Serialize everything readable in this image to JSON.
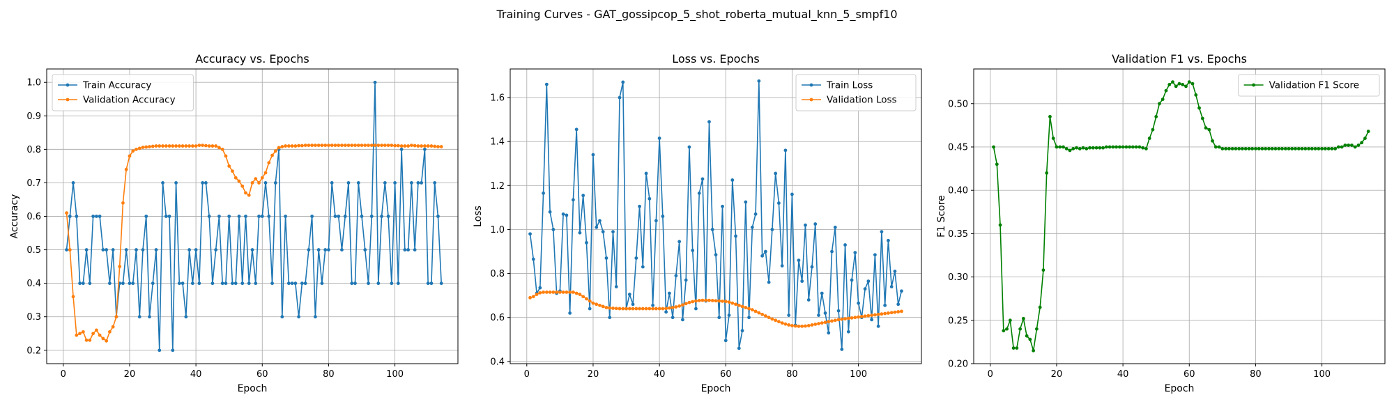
{
  "figure": {
    "suptitle": "Training Curves - GAT_gossipcop_5_shot_roberta_mutual_knn_5_smpf10"
  },
  "chart_data": [
    {
      "type": "line",
      "title": "Accuracy vs. Epochs",
      "xlabel": "Epoch",
      "ylabel": "Accuracy",
      "xlim": [
        -5,
        119
      ],
      "ylim": [
        0.16,
        1.04
      ],
      "xticks": [
        0,
        20,
        40,
        60,
        80,
        100
      ],
      "yticks": [
        0.2,
        0.3,
        0.4,
        0.5,
        0.6,
        0.7,
        0.8,
        0.9,
        1.0
      ],
      "yfmt": 1,
      "grid": true,
      "legend_position": "upper-left",
      "series": [
        {
          "name": "Train Accuracy",
          "color": "#1f77b4",
          "x_start": 1,
          "values": [
            0.5,
            0.6,
            0.7,
            0.6,
            0.4,
            0.4,
            0.5,
            0.4,
            0.6,
            0.6,
            0.6,
            0.5,
            0.5,
            0.4,
            0.5,
            0.3,
            0.4,
            0.4,
            0.5,
            0.4,
            0.4,
            0.5,
            0.3,
            0.5,
            0.6,
            0.3,
            0.4,
            0.5,
            0.2,
            0.7,
            0.6,
            0.6,
            0.2,
            0.7,
            0.4,
            0.4,
            0.3,
            0.5,
            0.4,
            0.5,
            0.4,
            0.7,
            0.7,
            0.6,
            0.4,
            0.5,
            0.6,
            0.4,
            0.4,
            0.6,
            0.4,
            0.4,
            0.6,
            0.4,
            0.6,
            0.4,
            0.5,
            0.4,
            0.6,
            0.6,
            0.7,
            0.6,
            0.4,
            0.7,
            0.8,
            0.3,
            0.6,
            0.4,
            0.4,
            0.4,
            0.3,
            0.4,
            0.4,
            0.5,
            0.6,
            0.3,
            0.5,
            0.4,
            0.5,
            0.5,
            0.7,
            0.6,
            0.6,
            0.5,
            0.6,
            0.7,
            0.4,
            0.4,
            0.7,
            0.6,
            0.5,
            0.4,
            0.6,
            1.0,
            0.4,
            0.6,
            0.7,
            0.6,
            0.4,
            0.7,
            0.4,
            0.8,
            0.5,
            0.5,
            0.7,
            0.5,
            0.7,
            0.7,
            0.8,
            0.4,
            0.4,
            0.7,
            0.6,
            0.4
          ]
        },
        {
          "name": "Validation Accuracy",
          "color": "#ff7f0e",
          "x_start": 1,
          "values": [
            0.61,
            0.5,
            0.36,
            0.245,
            0.25,
            0.255,
            0.23,
            0.23,
            0.25,
            0.26,
            0.245,
            0.235,
            0.228,
            0.255,
            0.27,
            0.3,
            0.45,
            0.64,
            0.74,
            0.78,
            0.795,
            0.8,
            0.803,
            0.806,
            0.807,
            0.808,
            0.809,
            0.81,
            0.81,
            0.81,
            0.81,
            0.81,
            0.81,
            0.81,
            0.81,
            0.81,
            0.81,
            0.81,
            0.81,
            0.81,
            0.812,
            0.812,
            0.811,
            0.81,
            0.81,
            0.81,
            0.805,
            0.8,
            0.78,
            0.75,
            0.735,
            0.715,
            0.705,
            0.69,
            0.67,
            0.663,
            0.7,
            0.712,
            0.7,
            0.715,
            0.73,
            0.76,
            0.782,
            0.795,
            0.805,
            0.808,
            0.81,
            0.81,
            0.81,
            0.81,
            0.811,
            0.811,
            0.812,
            0.812,
            0.812,
            0.812,
            0.812,
            0.812,
            0.812,
            0.812,
            0.812,
            0.812,
            0.812,
            0.812,
            0.812,
            0.812,
            0.812,
            0.812,
            0.812,
            0.812,
            0.812,
            0.812,
            0.812,
            0.812,
            0.812,
            0.812,
            0.812,
            0.812,
            0.812,
            0.811,
            0.811,
            0.81,
            0.81,
            0.81,
            0.812,
            0.811,
            0.81,
            0.81,
            0.81,
            0.81,
            0.81,
            0.809,
            0.808,
            0.808
          ]
        }
      ]
    },
    {
      "type": "line",
      "title": "Loss vs. Epochs",
      "xlabel": "Epoch",
      "ylabel": "Loss",
      "xlim": [
        -5,
        119
      ],
      "ylim": [
        0.39,
        1.73
      ],
      "xticks": [
        0,
        20,
        40,
        60,
        80,
        100
      ],
      "yticks": [
        0.4,
        0.6,
        0.8,
        1.0,
        1.2,
        1.4,
        1.6
      ],
      "yfmt": 1,
      "grid": true,
      "legend_position": "upper-right",
      "series": [
        {
          "name": "Train Loss",
          "color": "#1f77b4",
          "x_start": 1,
          "values": [
            0.98,
            0.865,
            0.71,
            0.735,
            1.165,
            1.66,
            1.08,
            1.0,
            0.71,
            0.72,
            1.07,
            1.065,
            0.62,
            1.135,
            1.455,
            0.985,
            1.155,
            0.94,
            0.64,
            1.34,
            1.01,
            1.04,
            0.99,
            0.87,
            0.6,
            0.99,
            0.74,
            1.6,
            1.67,
            0.64,
            0.705,
            0.66,
            0.87,
            1.105,
            0.83,
            1.255,
            1.14,
            0.655,
            1.04,
            1.415,
            1.06,
            0.625,
            0.71,
            0.6,
            0.79,
            0.945,
            0.59,
            0.77,
            1.375,
            0.905,
            0.64,
            1.165,
            1.23,
            0.675,
            1.49,
            1.0,
            0.885,
            0.6,
            1.105,
            0.495,
            0.61,
            1.225,
            0.97,
            0.46,
            0.54,
            1.125,
            0.6,
            1.01,
            1.07,
            1.675,
            0.88,
            0.9,
            0.76,
            1.0,
            1.255,
            1.12,
            0.835,
            1.36,
            0.61,
            1.16,
            0.565,
            0.86,
            0.765,
            1.02,
            0.68,
            0.83,
            1.025,
            0.61,
            0.71,
            0.62,
            0.53,
            0.9,
            1.01,
            0.63,
            0.455,
            0.93,
            0.535,
            0.77,
            0.895,
            0.665,
            0.6,
            0.73,
            0.765,
            0.59,
            0.885,
            0.56,
            0.99,
            0.655,
            0.95,
            0.74,
            0.81,
            0.66,
            0.72
          ]
        },
        {
          "name": "Validation Loss",
          "color": "#ff7f0e",
          "x_start": 1,
          "values": [
            0.69,
            0.695,
            0.705,
            0.712,
            0.715,
            0.715,
            0.715,
            0.715,
            0.715,
            0.715,
            0.715,
            0.715,
            0.715,
            0.715,
            0.71,
            0.705,
            0.695,
            0.685,
            0.675,
            0.665,
            0.66,
            0.655,
            0.65,
            0.645,
            0.643,
            0.642,
            0.641,
            0.64,
            0.64,
            0.64,
            0.64,
            0.64,
            0.64,
            0.64,
            0.64,
            0.64,
            0.64,
            0.64,
            0.64,
            0.64,
            0.64,
            0.641,
            0.643,
            0.645,
            0.648,
            0.652,
            0.657,
            0.663,
            0.668,
            0.672,
            0.675,
            0.677,
            0.678,
            0.678,
            0.678,
            0.677,
            0.676,
            0.675,
            0.674,
            0.673,
            0.67,
            0.665,
            0.66,
            0.655,
            0.65,
            0.645,
            0.64,
            0.635,
            0.628,
            0.621,
            0.614,
            0.607,
            0.6,
            0.593,
            0.587,
            0.581,
            0.575,
            0.57,
            0.566,
            0.563,
            0.561,
            0.56,
            0.56,
            0.561,
            0.563,
            0.566,
            0.569,
            0.572,
            0.575,
            0.578,
            0.581,
            0.584,
            0.587,
            0.59,
            0.592,
            0.594,
            0.596,
            0.598,
            0.6,
            0.602,
            0.604,
            0.606,
            0.608,
            0.61,
            0.612,
            0.614,
            0.616,
            0.618,
            0.62,
            0.622,
            0.624,
            0.626,
            0.628
          ]
        }
      ]
    },
    {
      "type": "line",
      "title": "Validation F1 vs. Epochs",
      "xlabel": "Epoch",
      "ylabel": "F1 Score",
      "xlim": [
        -5,
        119
      ],
      "ylim": [
        0.2,
        0.54
      ],
      "xticks": [
        0,
        20,
        40,
        60,
        80,
        100
      ],
      "yticks": [
        0.2,
        0.25,
        0.3,
        0.35,
        0.4,
        0.45,
        0.5
      ],
      "yfmt": 2,
      "grid": true,
      "legend_position": "upper-right",
      "series": [
        {
          "name": "Validation F1 Score",
          "color": "#008000",
          "x_start": 1,
          "values": [
            0.45,
            0.43,
            0.36,
            0.238,
            0.24,
            0.25,
            0.218,
            0.218,
            0.24,
            0.252,
            0.232,
            0.228,
            0.215,
            0.24,
            0.265,
            0.308,
            0.42,
            0.485,
            0.46,
            0.45,
            0.45,
            0.45,
            0.448,
            0.446,
            0.448,
            0.449,
            0.448,
            0.449,
            0.448,
            0.449,
            0.449,
            0.449,
            0.449,
            0.449,
            0.45,
            0.45,
            0.45,
            0.45,
            0.45,
            0.45,
            0.45,
            0.45,
            0.45,
            0.45,
            0.45,
            0.449,
            0.448,
            0.46,
            0.47,
            0.485,
            0.5,
            0.505,
            0.515,
            0.522,
            0.525,
            0.52,
            0.523,
            0.522,
            0.52,
            0.525,
            0.523,
            0.51,
            0.495,
            0.483,
            0.472,
            0.47,
            0.457,
            0.45,
            0.45,
            0.448,
            0.448,
            0.448,
            0.448,
            0.448,
            0.448,
            0.448,
            0.448,
            0.448,
            0.448,
            0.448,
            0.448,
            0.448,
            0.448,
            0.448,
            0.448,
            0.448,
            0.448,
            0.448,
            0.448,
            0.448,
            0.448,
            0.448,
            0.448,
            0.448,
            0.448,
            0.448,
            0.448,
            0.448,
            0.448,
            0.448,
            0.448,
            0.448,
            0.448,
            0.448,
            0.45,
            0.45,
            0.452,
            0.452,
            0.452,
            0.45,
            0.452,
            0.455,
            0.46,
            0.468
          ]
        }
      ]
    }
  ]
}
